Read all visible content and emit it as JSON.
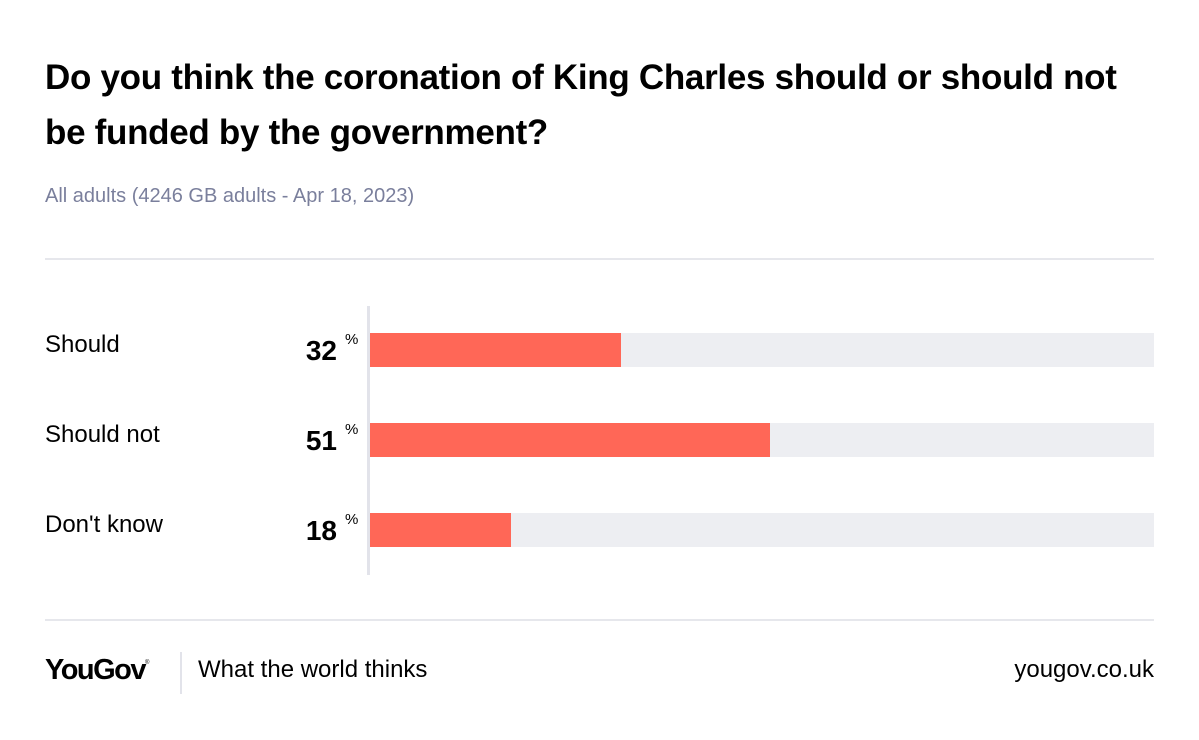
{
  "chart_data": {
    "type": "bar",
    "orientation": "horizontal",
    "title": "Do you think the coronation of King Charles should or should not be funded by the government?",
    "subtitle": "All adults (4246 GB adults - Apr 18, 2023)",
    "categories": [
      "Should",
      "Should not",
      "Don't know"
    ],
    "values": [
      32,
      51,
      18
    ],
    "unit": "%",
    "xlim": [
      0,
      100
    ],
    "grid": false,
    "bar_color": "#ff6757",
    "track_color": "#edeef2"
  },
  "footer": {
    "logo": "YouGov",
    "tagline": "What the world thinks",
    "url": "yougov.co.uk"
  }
}
